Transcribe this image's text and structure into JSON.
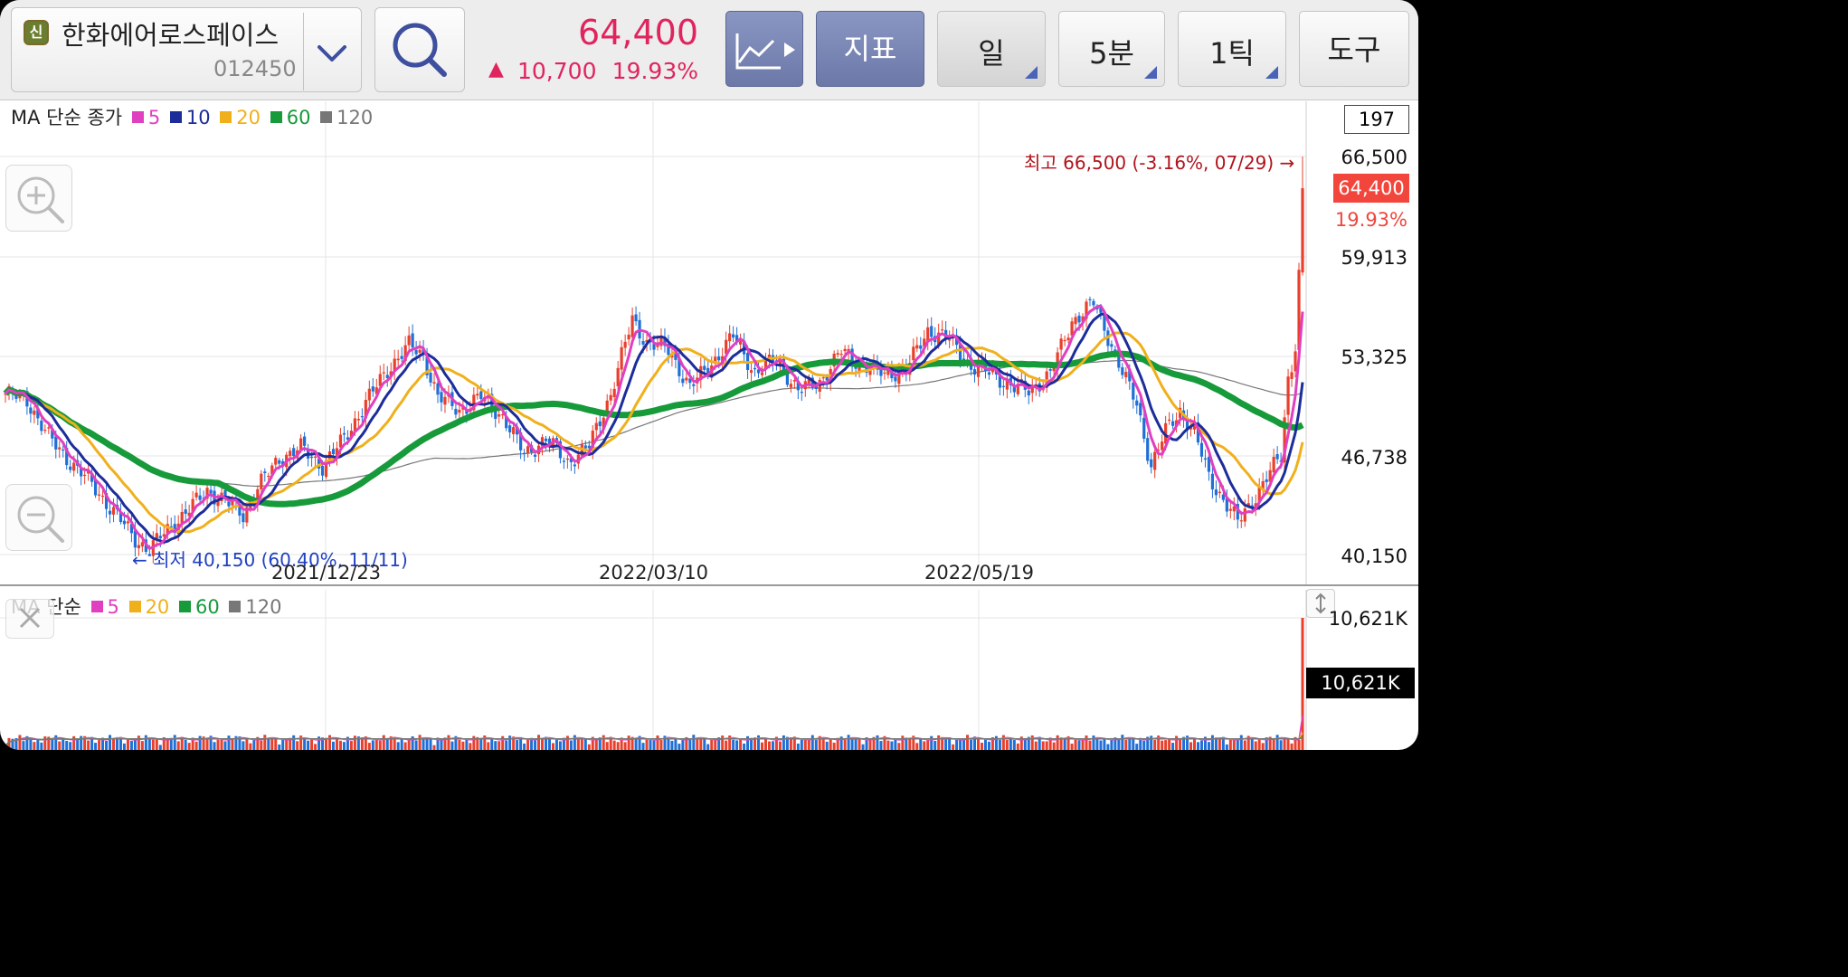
{
  "header": {
    "badge": "신",
    "stock_name": "한화에어로스페이스",
    "stock_code": "012450",
    "price": "64,400",
    "change_arrow": "▲",
    "change": "10,700",
    "change_pct": "19.93%",
    "indicator_label": "지표",
    "period_label": "일",
    "minute_label": "5분",
    "tick_label": "1틱",
    "tools_label": "도구"
  },
  "icons": {
    "badge": "shin-badge-icon",
    "dropdown": "chevron-down-icon",
    "search": "search-icon",
    "chart_type": "line-chart-icon",
    "zoom_in": "zoom-in-icon",
    "zoom_out": "zoom-out-icon",
    "close": "close-icon",
    "resize": "vertical-resize-icon"
  },
  "price_legend": {
    "prefix": "MA 단순 종가",
    "items": [
      {
        "label": "5",
        "color": "#e040c0"
      },
      {
        "label": "10",
        "color": "#1c2d9a"
      },
      {
        "label": "20",
        "color": "#f0b01c"
      },
      {
        "label": "60",
        "color": "#169a3a"
      },
      {
        "label": "120",
        "color": "#777777"
      }
    ]
  },
  "volume_legend": {
    "prefix": "MA 단순",
    "items": [
      {
        "label": "5",
        "color": "#e040c0"
      },
      {
        "label": "20",
        "color": "#f0b01c"
      },
      {
        "label": "60",
        "color": "#169a3a"
      },
      {
        "label": "120",
        "color": "#777777"
      }
    ]
  },
  "price_axis": {
    "count_box": "197",
    "ticks": [
      "66,500",
      "59,913",
      "53,325",
      "46,738",
      "40,150"
    ],
    "current_price": "64,400",
    "current_pct": "19.93%"
  },
  "annotations": {
    "high": "최고 66,500 (-3.16%, 07/29) →",
    "low": "← 최저 40,150 (60.40%, 11/11)"
  },
  "x_axis": {
    "labels": [
      "2021/12/23",
      "2022/03/10",
      "2022/05/19"
    ]
  },
  "volume_axis": {
    "top": "10,621K",
    "current": "10,621K"
  },
  "chart_data": {
    "type": "candlestick",
    "symbol": "012450",
    "up_color": "#e8402c",
    "down_color": "#1f6fd6",
    "y_range": [
      40150,
      66500
    ],
    "highest": 66500,
    "lowest": 40150,
    "last_close": 64400,
    "x_labels": [
      "2021/12/23",
      "2022/03/10",
      "2022/05/19"
    ],
    "close_path": [
      [
        0,
        50800
      ],
      [
        6,
        50400
      ],
      [
        12,
        47900
      ],
      [
        18,
        46300
      ],
      [
        24,
        44800
      ],
      [
        30,
        43000
      ],
      [
        36,
        41200
      ],
      [
        40,
        40400
      ],
      [
        44,
        41600
      ],
      [
        50,
        42900
      ],
      [
        56,
        44400
      ],
      [
        62,
        43500
      ],
      [
        66,
        42800
      ],
      [
        70,
        44600
      ],
      [
        76,
        46500
      ],
      [
        82,
        47200
      ],
      [
        88,
        46000
      ],
      [
        94,
        47800
      ],
      [
        100,
        50200
      ],
      [
        106,
        52400
      ],
      [
        112,
        54000
      ],
      [
        116,
        53300
      ],
      [
        120,
        50600
      ],
      [
        126,
        49700
      ],
      [
        132,
        50600
      ],
      [
        138,
        49300
      ],
      [
        144,
        46800
      ],
      [
        150,
        47800
      ],
      [
        156,
        46300
      ],
      [
        162,
        47300
      ],
      [
        168,
        50800
      ],
      [
        174,
        55700
      ],
      [
        178,
        54200
      ],
      [
        184,
        53700
      ],
      [
        190,
        51200
      ],
      [
        196,
        52800
      ],
      [
        202,
        54600
      ],
      [
        208,
        52200
      ],
      [
        214,
        53100
      ],
      [
        220,
        51000
      ],
      [
        226,
        51600
      ],
      [
        232,
        53600
      ],
      [
        238,
        52700
      ],
      [
        244,
        52100
      ],
      [
        250,
        52400
      ],
      [
        256,
        55000
      ],
      [
        262,
        54400
      ],
      [
        268,
        52600
      ],
      [
        274,
        52100
      ],
      [
        280,
        51200
      ],
      [
        284,
        51000
      ],
      [
        290,
        52100
      ],
      [
        296,
        55600
      ],
      [
        302,
        56800
      ],
      [
        306,
        54600
      ],
      [
        310,
        52200
      ],
      [
        314,
        50100
      ],
      [
        318,
        46000
      ],
      [
        322,
        48300
      ],
      [
        326,
        49700
      ],
      [
        330,
        48200
      ],
      [
        334,
        45300
      ],
      [
        338,
        43800
      ],
      [
        342,
        42300
      ],
      [
        346,
        43700
      ],
      [
        350,
        45200
      ],
      [
        354,
        46700
      ],
      [
        356,
        51800
      ],
      [
        358,
        53600
      ],
      [
        360,
        64400
      ]
    ],
    "ma_lines": [
      {
        "name": "5",
        "color": "#e040c0"
      },
      {
        "name": "10",
        "color": "#1c2d9a"
      },
      {
        "name": "20",
        "color": "#f0b01c"
      },
      {
        "name": "60",
        "color": "#169a3a"
      },
      {
        "name": "120",
        "color": "#777777"
      }
    ],
    "volume_max": "10,621K",
    "volume_last": "10,621K"
  }
}
